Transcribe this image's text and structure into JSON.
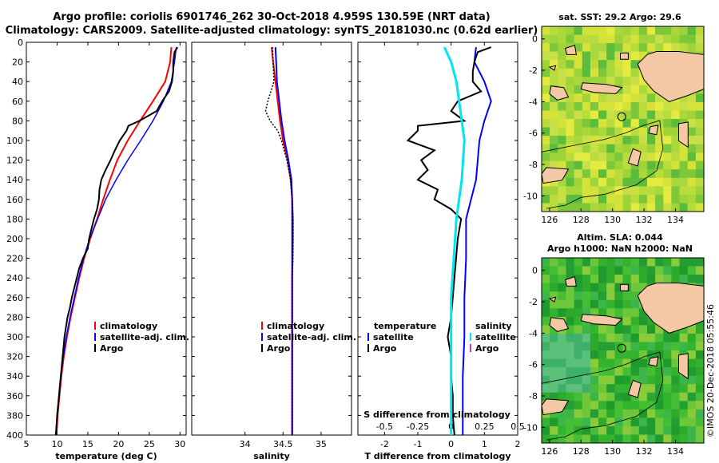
{
  "title": {
    "line1": "Argo profile: coriolis 6901746_262 30-Oct-2018 4.959S 130.59E (NRT data)",
    "line2": "Climatology: CARS2009. Satellite-adjusted climatology: synTS_20181030.nc (0.62d earlier)"
  },
  "colors": {
    "climatology": "#ff0000",
    "satellite": "#0000ff",
    "argo": "#000000",
    "sat_salinity": "#00e5ee",
    "argo_salinity": "#cc33cc",
    "land": "#f4c8a4"
  },
  "chart_data": [
    {
      "type": "line",
      "id": "temperature",
      "xlabel": "temperature (deg C)",
      "xlim": [
        5,
        31
      ],
      "xticks": [
        "5",
        "10",
        "15",
        "20",
        "25",
        "30"
      ],
      "ylim": [
        0,
        400
      ],
      "yticks": [
        "0",
        "20",
        "40",
        "60",
        "80",
        "100",
        "120",
        "140",
        "160",
        "180",
        "200",
        "220",
        "240",
        "260",
        "280",
        "300",
        "320",
        "340",
        "360",
        "380",
        "400"
      ],
      "legend": [
        "climatology",
        "satellite-adj. clim.",
        "Argo"
      ],
      "series": [
        {
          "name": "climatology",
          "depth": [
            5,
            20,
            40,
            60,
            80,
            100,
            120,
            140,
            160,
            180,
            200,
            220,
            240,
            260,
            280,
            300,
            320,
            340,
            360,
            380,
            400
          ],
          "values": [
            28.6,
            28.4,
            27.6,
            25.6,
            23.5,
            21.5,
            19.8,
            18.6,
            17.5,
            16.5,
            15.4,
            14.4,
            13.6,
            12.9,
            12.2,
            11.6,
            11.1,
            10.7,
            10.4,
            10.1,
            9.9
          ]
        },
        {
          "name": "satellite-adj. clim.",
          "depth": [
            5,
            20,
            40,
            60,
            80,
            100,
            120,
            140,
            160,
            180,
            200,
            220,
            240,
            260,
            280,
            300,
            320,
            340,
            360,
            380,
            400
          ],
          "values": [
            29.4,
            29.1,
            28.6,
            27.3,
            25.6,
            23.6,
            21.5,
            19.6,
            17.9,
            16.6,
            15.3,
            14.3,
            13.5,
            12.8,
            12.1,
            11.5,
            11.0,
            10.6,
            10.3,
            10.0,
            9.9
          ]
        },
        {
          "name": "Argo",
          "depth": [
            5,
            10,
            20,
            30,
            40,
            50,
            60,
            70,
            80,
            85,
            90,
            100,
            110,
            120,
            130,
            140,
            150,
            160,
            170,
            180,
            190,
            200,
            210,
            220,
            230,
            240,
            250,
            260,
            270,
            280,
            300,
            320,
            340,
            360,
            380,
            400
          ],
          "values": [
            29.6,
            29.1,
            28.9,
            28.9,
            28.7,
            28.2,
            27.1,
            26.2,
            23.4,
            21.6,
            21.3,
            20.2,
            19.4,
            18.7,
            17.9,
            17.2,
            16.9,
            16.8,
            16.5,
            16.0,
            15.6,
            15.2,
            15.0,
            14.2,
            13.6,
            13.2,
            12.8,
            12.4,
            12.1,
            11.7,
            11.2,
            10.9,
            10.6,
            10.3,
            10.0,
            9.8
          ]
        }
      ]
    },
    {
      "type": "line",
      "id": "salinity",
      "xlabel": "salinity",
      "xlim": [
        33.3,
        35.4
      ],
      "xticks": [
        "34",
        "34.5",
        "35"
      ],
      "ylim": [
        0,
        400
      ],
      "legend": [
        "climatology",
        "satellite-adj. clim.",
        "Argo"
      ],
      "series": [
        {
          "name": "climatology",
          "depth": [
            5,
            20,
            40,
            60,
            80,
            100,
            120,
            140,
            160,
            180,
            200,
            240,
            280,
            320,
            360,
            400
          ],
          "values": [
            34.35,
            34.37,
            34.4,
            34.43,
            34.46,
            34.5,
            34.56,
            34.6,
            34.62,
            34.63,
            34.63,
            34.62,
            34.62,
            34.62,
            34.62,
            34.62
          ]
        },
        {
          "name": "satellite-adj. clim.",
          "depth": [
            5,
            20,
            40,
            60,
            80,
            100,
            120,
            140,
            160,
            180,
            200,
            240,
            280,
            320,
            360,
            400
          ],
          "values": [
            34.4,
            34.41,
            34.42,
            34.45,
            34.48,
            34.52,
            34.57,
            34.61,
            34.62,
            34.62,
            34.62,
            34.62,
            34.62,
            34.62,
            34.62,
            34.62
          ]
        },
        {
          "name": "Argo",
          "depth": [
            5,
            20,
            40,
            60,
            70,
            80,
            90,
            100,
            120,
            140,
            160,
            180,
            200,
            220,
            240,
            280,
            320,
            360,
            400
          ],
          "values": [
            34.36,
            34.37,
            34.38,
            34.3,
            34.27,
            34.33,
            34.43,
            34.48,
            34.55,
            34.6,
            34.62,
            34.63,
            34.63,
            34.63,
            34.62,
            34.62,
            34.62,
            34.62,
            34.62
          ]
        }
      ]
    },
    {
      "type": "line",
      "id": "difference",
      "xlabel": "T difference from climatology",
      "xlabel_top": "S difference from climatology",
      "xlim": [
        -2.8,
        2.0
      ],
      "xticks": [
        "-2",
        "-1",
        "0",
        "1",
        "2"
      ],
      "xticks_top": [
        "-0.5",
        "-0.25",
        "0",
        "0.25",
        "0.5"
      ],
      "ylim": [
        0,
        400
      ],
      "legend_left_title": "temperature",
      "legend_right_title": "salinity",
      "legend_left": [
        "satellite",
        "Argo"
      ],
      "legend_right": [
        "satellite",
        "Argo"
      ],
      "series": [
        {
          "name": "T satellite",
          "depth": [
            5,
            20,
            40,
            60,
            80,
            100,
            140,
            180,
            220,
            260,
            300,
            340,
            380,
            400
          ],
          "values": [
            0.75,
            0.7,
            1.0,
            1.2,
            1.0,
            0.85,
            0.75,
            0.45,
            0.45,
            0.4,
            0.4,
            0.35,
            0.35,
            0.35
          ]
        },
        {
          "name": "T Argo",
          "depth": [
            5,
            10,
            20,
            30,
            40,
            50,
            60,
            70,
            80,
            85,
            90,
            100,
            110,
            120,
            130,
            140,
            150,
            160,
            170,
            180,
            200,
            240,
            280,
            300,
            320,
            340,
            360,
            380,
            400
          ],
          "values": [
            1.2,
            0.8,
            0.7,
            0.65,
            0.65,
            0.9,
            0.2,
            0.0,
            0.4,
            -1.0,
            -1.0,
            -1.3,
            -0.5,
            -0.9,
            -0.7,
            -1.0,
            -0.4,
            -0.5,
            0.0,
            0.3,
            0.2,
            0.1,
            0.0,
            -0.1,
            0.0,
            0.0,
            0.05,
            0.05,
            0.1
          ]
        },
        {
          "name": "S satellite",
          "depth": [
            5,
            20,
            40,
            60,
            80,
            100,
            140,
            180,
            220,
            260,
            300,
            340,
            380,
            400
          ],
          "values": [
            -0.05,
            0.0,
            0.04,
            0.06,
            0.08,
            0.1,
            0.08,
            0.04,
            0.02,
            0.0,
            0.0,
            0.0,
            0.0,
            0.0
          ]
        }
      ]
    },
    {
      "type": "heatmap",
      "id": "sst-map",
      "title": "sat. SST: 29.2 Argo: 29.6",
      "xticks": [
        "126",
        "128",
        "130",
        "132",
        "134"
      ],
      "yticks": [
        "0",
        "-2",
        "-4",
        "-6",
        "-8",
        "-10"
      ],
      "xlim": [
        125.5,
        135.8
      ],
      "ylim": [
        -11,
        0.8
      ],
      "argo_position": [
        130.59,
        -4.959
      ]
    },
    {
      "type": "heatmap",
      "id": "sla-map",
      "title": "Altim. SLA: 0.044",
      "subtitle": "Argo h1000: NaN h2000: NaN",
      "xticks": [
        "126",
        "128",
        "130",
        "132",
        "134"
      ],
      "yticks": [
        "0",
        "-2",
        "-4",
        "-6",
        "-8",
        "-10"
      ],
      "xlim": [
        125.5,
        135.8
      ],
      "ylim": [
        -11,
        0.8
      ],
      "argo_position": [
        130.59,
        -4.959
      ]
    }
  ],
  "footer": "©IMOS 20-Dec-2018 05:55:46"
}
